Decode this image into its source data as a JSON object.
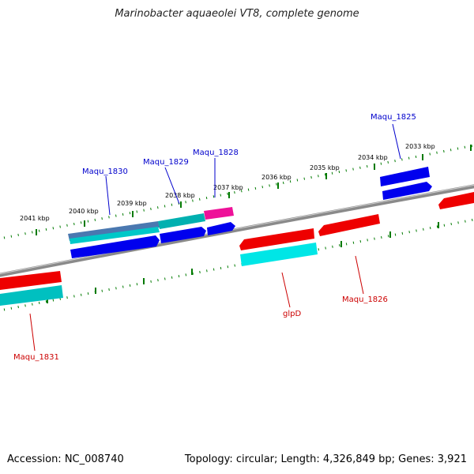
{
  "title": "Marinobacter aquaeolei VT8, complete genome",
  "accession": "Accession: NC_008740",
  "topology": "Topology: circular; Length: 4,326,849 bp; Genes: 3,921",
  "ticks": [
    "2041 kbp",
    "2040 kbp",
    "2039 kbp",
    "2038 kbp",
    "2037 kbp",
    "2036 kbp",
    "2035 kbp",
    "2034 kbp",
    "2033 kbp"
  ],
  "genes": {
    "g1825": "Maqu_1825",
    "g1826": "Maqu_1826",
    "g1828": "Maqu_1828",
    "g1829": "Maqu_1829",
    "g1830": "Maqu_1830",
    "g1831": "Maqu_1831",
    "glpD": "glpD"
  },
  "colors": {
    "forward_label": "#0000cc",
    "reverse_label": "#cc0000",
    "blue": "#0000ee",
    "red": "#ee0000",
    "cyan": "#00dddd",
    "teal": "#00a8a8",
    "magenta": "#ee1199",
    "steel": "#4a78b0",
    "tick": "#007a00"
  }
}
